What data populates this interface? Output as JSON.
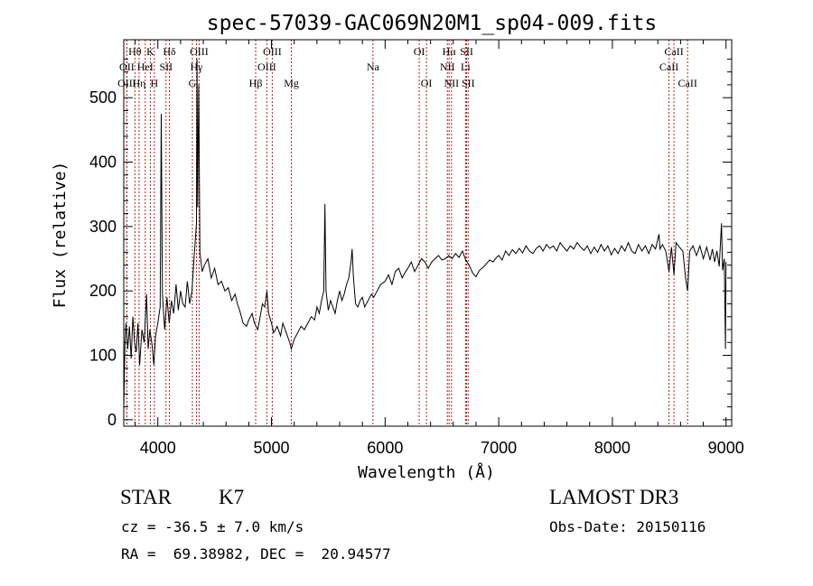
{
  "chart_data": {
    "type": "line",
    "title": "spec-57039-GAC069N20M1_sp04-009.fits",
    "xlabel": "Wavelength (Å)",
    "ylabel": "Flux (relative)",
    "xlim": [
      3700,
      9050
    ],
    "ylim": [
      -10,
      590
    ],
    "x_ticks": [
      4000,
      5000,
      6000,
      7000,
      8000,
      9000
    ],
    "y_ticks": [
      0,
      100,
      200,
      300,
      400,
      500
    ],
    "line_color": "#000000",
    "marker_color": "#b22222",
    "spectral_lines": [
      {
        "label": "Hθ",
        "wavelength": 3798,
        "row": 1
      },
      {
        "label": "OII",
        "wavelength": 3727,
        "row": 2
      },
      {
        "label": "OIII",
        "wavelength": 3727,
        "row": 3
      },
      {
        "label": "K",
        "wavelength": 3934,
        "row": 1
      },
      {
        "label": "HeI",
        "wavelength": 3889,
        "row": 2
      },
      {
        "label": "Hη",
        "wavelength": 3835,
        "row": 3
      },
      {
        "label": "SII",
        "wavelength": 4072,
        "row": 2
      },
      {
        "label": "H",
        "wavelength": 3969,
        "row": 3
      },
      {
        "label": "Hδ",
        "wavelength": 4102,
        "row": 1
      },
      {
        "label": "OIII",
        "wavelength": 4363,
        "row": 1
      },
      {
        "label": "Hγ",
        "wavelength": 4340,
        "row": 2
      },
      {
        "label": "G",
        "wavelength": 4304,
        "row": 3
      },
      {
        "label": "OIII",
        "wavelength": 5007,
        "row": 1
      },
      {
        "label": "OIII",
        "wavelength": 4959,
        "row": 2
      },
      {
        "label": "Hβ",
        "wavelength": 4861,
        "row": 3
      },
      {
        "label": "Mg",
        "wavelength": 5175,
        "row": 3
      },
      {
        "label": "Na",
        "wavelength": 5893,
        "row": 2
      },
      {
        "label": "OI",
        "wavelength": 6300,
        "row": 1
      },
      {
        "label": "OI",
        "wavelength": 6364,
        "row": 3
      },
      {
        "label": "Hα",
        "wavelength": 6563,
        "row": 1
      },
      {
        "label": "SII",
        "wavelength": 6717,
        "row": 1
      },
      {
        "label": "NII",
        "wavelength": 6548,
        "row": 2
      },
      {
        "label": "Li",
        "wavelength": 6708,
        "row": 2
      },
      {
        "label": "NII",
        "wavelength": 6584,
        "row": 3
      },
      {
        "label": "SII",
        "wavelength": 6731,
        "row": 3
      },
      {
        "label": "CaII",
        "wavelength": 8542,
        "row": 1
      },
      {
        "label": "CaII",
        "wavelength": 8498,
        "row": 2
      },
      {
        "label": "CaII",
        "wavelength": 8662,
        "row": 3
      }
    ],
    "spectrum": [
      [
        3700,
        15
      ],
      [
        3710,
        120
      ],
      [
        3720,
        150
      ],
      [
        3735,
        110
      ],
      [
        3750,
        145
      ],
      [
        3765,
        95
      ],
      [
        3780,
        160
      ],
      [
        3795,
        120
      ],
      [
        3810,
        105
      ],
      [
        3825,
        150
      ],
      [
        3840,
        85
      ],
      [
        3860,
        140
      ],
      [
        3880,
        120
      ],
      [
        3900,
        195
      ],
      [
        3915,
        110
      ],
      [
        3930,
        140
      ],
      [
        3950,
        115
      ],
      [
        3965,
        85
      ],
      [
        3980,
        130
      ],
      [
        4000,
        150
      ],
      [
        4020,
        175
      ],
      [
        4030,
        475
      ],
      [
        4040,
        195
      ],
      [
        4060,
        140
      ],
      [
        4080,
        190
      ],
      [
        4100,
        150
      ],
      [
        4120,
        185
      ],
      [
        4140,
        165
      ],
      [
        4160,
        210
      ],
      [
        4180,
        170
      ],
      [
        4200,
        200
      ],
      [
        4220,
        180
      ],
      [
        4240,
        175
      ],
      [
        4260,
        215
      ],
      [
        4280,
        180
      ],
      [
        4300,
        200
      ],
      [
        4320,
        255
      ],
      [
        4340,
        305
      ],
      [
        4345,
        560
      ],
      [
        4350,
        330
      ],
      [
        4360,
        520
      ],
      [
        4370,
        260
      ],
      [
        4390,
        230
      ],
      [
        4410,
        240
      ],
      [
        4440,
        250
      ],
      [
        4470,
        220
      ],
      [
        4500,
        235
      ],
      [
        4530,
        210
      ],
      [
        4560,
        215
      ],
      [
        4590,
        200
      ],
      [
        4620,
        205
      ],
      [
        4650,
        185
      ],
      [
        4680,
        195
      ],
      [
        4700,
        180
      ],
      [
        4720,
        170
      ],
      [
        4750,
        150
      ],
      [
        4780,
        145
      ],
      [
        4800,
        155
      ],
      [
        4830,
        165
      ],
      [
        4850,
        150
      ],
      [
        4880,
        140
      ],
      [
        4900,
        160
      ],
      [
        4920,
        180
      ],
      [
        4940,
        175
      ],
      [
        4960,
        200
      ],
      [
        4975,
        165
      ],
      [
        5000,
        150
      ],
      [
        5020,
        135
      ],
      [
        5050,
        145
      ],
      [
        5080,
        130
      ],
      [
        5100,
        150
      ],
      [
        5130,
        135
      ],
      [
        5160,
        120
      ],
      [
        5175,
        110
      ],
      [
        5200,
        125
      ],
      [
        5230,
        135
      ],
      [
        5260,
        145
      ],
      [
        5290,
        140
      ],
      [
        5320,
        150
      ],
      [
        5350,
        160
      ],
      [
        5380,
        155
      ],
      [
        5400,
        175
      ],
      [
        5420,
        165
      ],
      [
        5440,
        185
      ],
      [
        5460,
        200
      ],
      [
        5470,
        335
      ],
      [
        5480,
        200
      ],
      [
        5500,
        170
      ],
      [
        5520,
        185
      ],
      [
        5540,
        175
      ],
      [
        5560,
        165
      ],
      [
        5580,
        185
      ],
      [
        5600,
        200
      ],
      [
        5620,
        185
      ],
      [
        5640,
        195
      ],
      [
        5660,
        210
      ],
      [
        5680,
        220
      ],
      [
        5700,
        245
      ],
      [
        5710,
        265
      ],
      [
        5720,
        225
      ],
      [
        5740,
        180
      ],
      [
        5760,
        175
      ],
      [
        5780,
        185
      ],
      [
        5800,
        190
      ],
      [
        5820,
        175
      ],
      [
        5850,
        185
      ],
      [
        5880,
        195
      ],
      [
        5900,
        190
      ],
      [
        5930,
        200
      ],
      [
        5960,
        210
      ],
      [
        6000,
        215
      ],
      [
        6030,
        225
      ],
      [
        6060,
        210
      ],
      [
        6090,
        230
      ],
      [
        6120,
        235
      ],
      [
        6150,
        220
      ],
      [
        6180,
        230
      ],
      [
        6200,
        235
      ],
      [
        6230,
        245
      ],
      [
        6260,
        230
      ],
      [
        6290,
        240
      ],
      [
        6320,
        250
      ],
      [
        6350,
        245
      ],
      [
        6380,
        235
      ],
      [
        6410,
        245
      ],
      [
        6440,
        250
      ],
      [
        6470,
        255
      ],
      [
        6500,
        248
      ],
      [
        6530,
        250
      ],
      [
        6560,
        255
      ],
      [
        6590,
        250
      ],
      [
        6620,
        258
      ],
      [
        6650,
        252
      ],
      [
        6680,
        262
      ],
      [
        6710,
        248
      ],
      [
        6740,
        240
      ],
      [
        6770,
        228
      ],
      [
        6800,
        222
      ],
      [
        6830,
        232
      ],
      [
        6860,
        236
      ],
      [
        6890,
        242
      ],
      [
        6920,
        248
      ],
      [
        6950,
        245
      ],
      [
        6980,
        252
      ],
      [
        7000,
        255
      ],
      [
        7030,
        248
      ],
      [
        7060,
        262
      ],
      [
        7090,
        255
      ],
      [
        7120,
        264
      ],
      [
        7150,
        258
      ],
      [
        7180,
        266
      ],
      [
        7210,
        259
      ],
      [
        7240,
        270
      ],
      [
        7270,
        262
      ],
      [
        7300,
        258
      ],
      [
        7330,
        266
      ],
      [
        7360,
        270
      ],
      [
        7390,
        262
      ],
      [
        7420,
        272
      ],
      [
        7450,
        266
      ],
      [
        7480,
        270
      ],
      [
        7510,
        262
      ],
      [
        7540,
        275
      ],
      [
        7570,
        268
      ],
      [
        7600,
        262
      ],
      [
        7630,
        270
      ],
      [
        7660,
        265
      ],
      [
        7690,
        275
      ],
      [
        7720,
        268
      ],
      [
        7750,
        263
      ],
      [
        7780,
        270
      ],
      [
        7810,
        258
      ],
      [
        7840,
        268
      ],
      [
        7870,
        260
      ],
      [
        7900,
        272
      ],
      [
        7930,
        262
      ],
      [
        7960,
        270
      ],
      [
        7990,
        256
      ],
      [
        8020,
        266
      ],
      [
        8050,
        258
      ],
      [
        8080,
        270
      ],
      [
        8110,
        262
      ],
      [
        8140,
        275
      ],
      [
        8170,
        262
      ],
      [
        8200,
        258
      ],
      [
        8230,
        272
      ],
      [
        8260,
        262
      ],
      [
        8290,
        270
      ],
      [
        8320,
        258
      ],
      [
        8350,
        272
      ],
      [
        8380,
        265
      ],
      [
        8410,
        288
      ],
      [
        8420,
        265
      ],
      [
        8440,
        272
      ],
      [
        8470,
        262
      ],
      [
        8498,
        230
      ],
      [
        8520,
        268
      ],
      [
        8542,
        225
      ],
      [
        8560,
        275
      ],
      [
        8590,
        268
      ],
      [
        8620,
        262
      ],
      [
        8645,
        218
      ],
      [
        8662,
        200
      ],
      [
        8680,
        262
      ],
      [
        8710,
        270
      ],
      [
        8740,
        255
      ],
      [
        8770,
        270
      ],
      [
        8800,
        250
      ],
      [
        8830,
        268
      ],
      [
        8860,
        248
      ],
      [
        8880,
        265
      ],
      [
        8900,
        245
      ],
      [
        8920,
        262
      ],
      [
        8940,
        238
      ],
      [
        8960,
        305
      ],
      [
        8970,
        232
      ],
      [
        8985,
        250
      ],
      [
        8995,
        110
      ],
      [
        9000,
        245
      ]
    ]
  },
  "info": {
    "object_type": "STAR",
    "subclass": "K7",
    "survey": "LAMOST DR3",
    "cz": "cz = -36.5 ± 7.0 km/s",
    "obs_date": "Obs-Date: 20150116",
    "coords": "RA =  69.38982, DEC =  20.94577"
  }
}
